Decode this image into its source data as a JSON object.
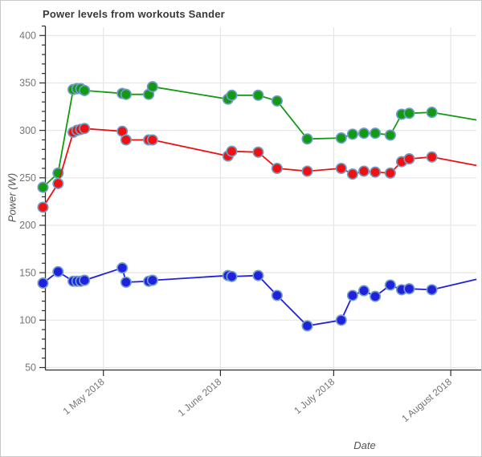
{
  "chart_data": {
    "type": "line",
    "title": "Power levels from workouts Sander",
    "xlabel": "Date",
    "ylabel": "Power (W)",
    "grid": true,
    "legend": "none",
    "ylim": [
      47,
      412
    ],
    "y_ticks": [
      50,
      100,
      150,
      200,
      250,
      300,
      350,
      400
    ],
    "y_minor_tick_step": 10,
    "x_ticks": [
      {
        "label": "1 May 2018",
        "day": 0
      },
      {
        "label": "1 June 2018",
        "day": 31
      },
      {
        "label": "1 July 2018",
        "day": 61
      },
      {
        "label": "1 August 2018",
        "day": 92
      }
    ],
    "x_dates": [
      "15 Apr 2018",
      "19 Apr 2018",
      "23 Apr 2018",
      "24 Apr 2018",
      "25 Apr 2018",
      "26 Apr 2018",
      "6 May 2018",
      "7 May 2018",
      "13 May 2018",
      "14 May 2018",
      "3 Jun 2018",
      "4 Jun 2018",
      "11 Jun 2018",
      "16 Jun 2018",
      "24 Jun 2018",
      "3 Jul 2018",
      "6 Jul 2018",
      "9 Jul 2018",
      "12 Jul 2018",
      "16 Jul 2018",
      "19 Jul 2018",
      "21 Jul 2018",
      "27 Jul 2018"
    ],
    "day_offsets_from_may1": [
      -16,
      -12,
      -8,
      -7,
      -6,
      -5,
      5,
      6,
      12,
      13,
      33,
      34,
      41,
      46,
      54,
      63,
      66,
      69,
      72,
      76,
      79,
      81,
      87
    ],
    "series": [
      {
        "name": "green",
        "color": "#139a13",
        "values": [
          240,
          255,
          343,
          344,
          344,
          342,
          339,
          338,
          338,
          346,
          333,
          337,
          337,
          331,
          291,
          292,
          296,
          297,
          297,
          295,
          317,
          318,
          319
        ]
      },
      {
        "name": "red",
        "color": "#ee1111",
        "values": [
          219,
          244,
          298,
          300,
          301,
          302,
          299,
          290,
          290,
          290,
          273,
          278,
          277,
          260,
          257,
          260,
          254,
          257,
          256,
          255,
          267,
          270,
          272
        ]
      },
      {
        "name": "blue",
        "color": "#2121dd",
        "values": [
          139,
          151,
          141,
          141,
          141,
          142,
          155,
          140,
          141,
          142,
          147,
          146,
          147,
          126,
          94,
          100,
          126,
          131,
          125,
          137,
          132,
          133,
          132
        ]
      }
    ],
    "continuation_beyond_last_marker": {
      "day_offset": 98.8,
      "values": {
        "green": 311,
        "red": 263,
        "blue": 143
      }
    },
    "marker_outline_color": "#6f9ec7",
    "gridline_color": "#e6e6e6",
    "axis_color": "#2e2e2e",
    "tick_label_color": "#757575"
  }
}
